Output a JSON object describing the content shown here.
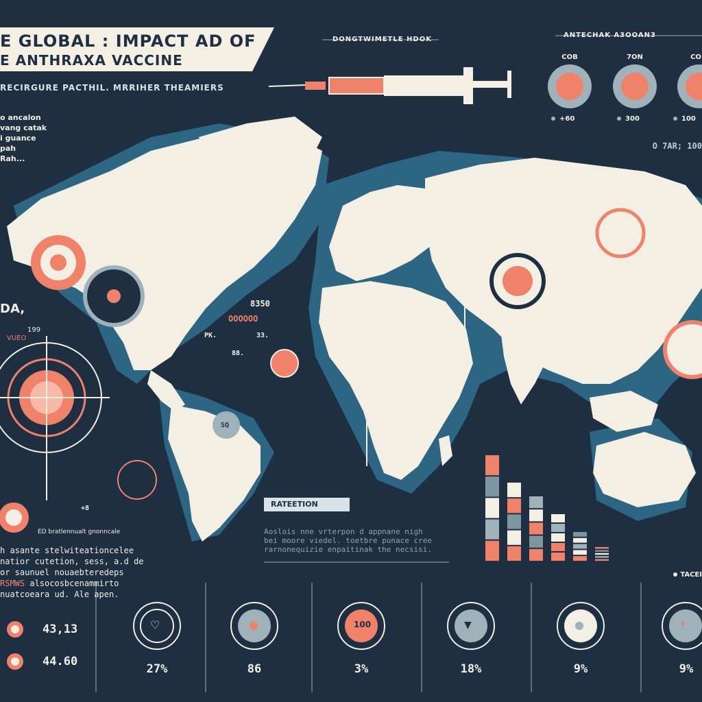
{
  "header": {
    "title_line1": "E GLOBAL : IMPACT AD OF",
    "title_line2": "E ANTHRAXA VACCINE",
    "subtitle": "RECIRGURE PACTHIL. MRRIHER THEAMIERS",
    "top_center_label": "DONGTWIMETLE HDOK",
    "top_right_label": "ANTECHAK A3OOAN3"
  },
  "top_icons": {
    "labels": [
      "COB",
      "7ON",
      "CO"
    ],
    "values": [
      "+60",
      "300",
      "100"
    ],
    "ratio": "O 7AR; 100"
  },
  "left_notes": {
    "lines": [
      "o ancalon",
      "vang catak",
      "i guance",
      "pah",
      "Rah..."
    ],
    "region_label": "DA,",
    "region_sub": "199",
    "region_sub2": "VUEO"
  },
  "map_labels": {
    "num_top": "8350",
    "num_circles": "OOOOOO",
    "pk": "PK.",
    "s1": "33.",
    "s2": "88.",
    "plus8": "+8",
    "sq": "SQ"
  },
  "left_paragraph": {
    "heading": "ED bratlennualt gnonncale",
    "line1": "h asante stelwiteationcelee",
    "line2": "natior cutetion, sess, a.d de",
    "line3": "or saunuel nouaebteredeps",
    "line4_accent": "RSMWS",
    "line4_rest": " alsocosbcenammirto",
    "line5": "nuatcoeara ud. Ale apen."
  },
  "left_stats": [
    "43,13",
    "44.60"
  ],
  "retention": {
    "label": "RATEETION",
    "desc_line1": "Aoslois nne vrterpon d appnane nigh",
    "desc_line2": "bei moore viedel. toetbre punace cree",
    "desc_line3": "rarnonequizie enpaitinak the necsisi."
  },
  "bar_chart": {
    "values": [
      0.78,
      0.58,
      0.48,
      0.35,
      0.22,
      0.11
    ]
  },
  "tag_label": "TACEI",
  "bottom_stats": {
    "values": [
      "27%",
      "86",
      "3%",
      "18%",
      "9%",
      "9%"
    ],
    "icons": [
      "heart-icon",
      "drop-icon",
      "badge-icon",
      "bat-icon",
      "person-icon",
      "ribbon-icon"
    ]
  },
  "colors": {
    "background": "#1d2f40",
    "land": "#f3efe2",
    "coast": "#2f6d8a",
    "accent": "#f0826a",
    "muted": "#9fb2ba"
  }
}
